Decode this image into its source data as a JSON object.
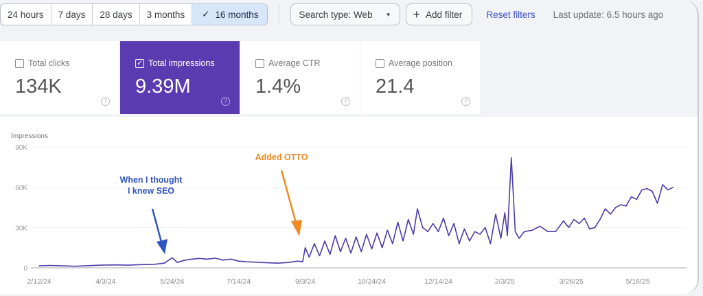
{
  "toolbar": {
    "ranges": [
      {
        "label": "24 hours",
        "selected": false
      },
      {
        "label": "7 days",
        "selected": false
      },
      {
        "label": "28 days",
        "selected": false
      },
      {
        "label": "3 months",
        "selected": false
      },
      {
        "label": "16 months",
        "selected": true
      }
    ],
    "check_glyph": "✓",
    "search_type": "Search type: Web",
    "add_filter": "Add filter",
    "reset_filters": "Reset filters",
    "last_update": "Last update: 6.5 hours ago"
  },
  "metrics": [
    {
      "label": "Total clicks",
      "value": "134K",
      "checked": false
    },
    {
      "label": "Total impressions",
      "value": "9.39M",
      "checked": true
    },
    {
      "label": "Average CTR",
      "value": "1.4%",
      "checked": false
    },
    {
      "label": "Average position",
      "value": "21.4",
      "checked": false
    }
  ],
  "colors": {
    "accent": "#5b3bb0",
    "line": "#4b3aa8",
    "annotation_blue": "#2f55c0",
    "annotation_orange": "#f08a24",
    "link": "#3b4fc4"
  },
  "chart_data": {
    "type": "line",
    "ylabel": "Impressions",
    "ylim": [
      0,
      90000
    ],
    "yticks": [
      {
        "value": 0,
        "label": "0"
      },
      {
        "value": 30000,
        "label": "30K"
      },
      {
        "value": 60000,
        "label": "60K"
      },
      {
        "value": 90000,
        "label": "90K"
      }
    ],
    "xticks": [
      {
        "date": "2024-02-12",
        "label": "2/12/24"
      },
      {
        "date": "2024-04-03",
        "label": "4/3/24"
      },
      {
        "date": "2024-05-24",
        "label": "5/24/24"
      },
      {
        "date": "2024-07-14",
        "label": "7/14/24"
      },
      {
        "date": "2024-09-03",
        "label": "9/3/24"
      },
      {
        "date": "2024-10-24",
        "label": "10/24/24"
      },
      {
        "date": "2024-12-14",
        "label": "12/14/24"
      },
      {
        "date": "2025-02-03",
        "label": "2/3/25"
      },
      {
        "date": "2025-03-26",
        "label": "3/26/25"
      },
      {
        "date": "2025-05-16",
        "label": "5/16/25"
      }
    ],
    "grid": true,
    "annotations": [
      {
        "text": [
          "When I thought",
          "I knew SEO"
        ],
        "date": "2024-05-22",
        "color": "blue"
      },
      {
        "text": [
          "Added OTTO"
        ],
        "date": "2024-09-01",
        "color": "orange"
      }
    ],
    "series": [
      {
        "points": [
          [
            "2024-02-12",
            1500
          ],
          [
            "2024-02-20",
            1800
          ],
          [
            "2024-03-01",
            1500
          ],
          [
            "2024-03-10",
            1200
          ],
          [
            "2024-03-20",
            1600
          ],
          [
            "2024-03-30",
            2000
          ],
          [
            "2024-04-10",
            2200
          ],
          [
            "2024-04-20",
            2000
          ],
          [
            "2024-04-30",
            2400
          ],
          [
            "2024-05-10",
            2600
          ],
          [
            "2024-05-18",
            3500
          ],
          [
            "2024-05-24",
            7500
          ],
          [
            "2024-05-28",
            4000
          ],
          [
            "2024-06-02",
            5500
          ],
          [
            "2024-06-08",
            6500
          ],
          [
            "2024-06-14",
            7000
          ],
          [
            "2024-06-20",
            6500
          ],
          [
            "2024-06-26",
            7200
          ],
          [
            "2024-07-02",
            5800
          ],
          [
            "2024-07-08",
            6500
          ],
          [
            "2024-07-14",
            5000
          ],
          [
            "2024-07-20",
            4500
          ],
          [
            "2024-07-28",
            4200
          ],
          [
            "2024-08-05",
            3800
          ],
          [
            "2024-08-13",
            3500
          ],
          [
            "2024-08-21",
            4000
          ],
          [
            "2024-08-28",
            5000
          ],
          [
            "2024-09-01",
            4500
          ],
          [
            "2024-09-03",
            15000
          ],
          [
            "2024-09-06",
            8000
          ],
          [
            "2024-09-10",
            18000
          ],
          [
            "2024-09-14",
            9000
          ],
          [
            "2024-09-18",
            20000
          ],
          [
            "2024-09-22",
            10000
          ],
          [
            "2024-09-26",
            24000
          ],
          [
            "2024-09-30",
            12000
          ],
          [
            "2024-10-04",
            22000
          ],
          [
            "2024-10-08",
            11000
          ],
          [
            "2024-10-12",
            23000
          ],
          [
            "2024-10-16",
            12000
          ],
          [
            "2024-10-20",
            25000
          ],
          [
            "2024-10-24",
            14000
          ],
          [
            "2024-10-28",
            26000
          ],
          [
            "2024-11-01",
            15000
          ],
          [
            "2024-11-05",
            28000
          ],
          [
            "2024-11-09",
            18000
          ],
          [
            "2024-11-13",
            34000
          ],
          [
            "2024-11-17",
            20000
          ],
          [
            "2024-11-21",
            36000
          ],
          [
            "2024-11-25",
            25000
          ],
          [
            "2024-11-28",
            44000
          ],
          [
            "2024-12-02",
            30000
          ],
          [
            "2024-12-06",
            27000
          ],
          [
            "2024-12-10",
            33000
          ],
          [
            "2024-12-14",
            27000
          ],
          [
            "2024-12-18",
            37000
          ],
          [
            "2024-12-22",
            24000
          ],
          [
            "2024-12-26",
            33000
          ],
          [
            "2024-12-30",
            18000
          ],
          [
            "2025-01-03",
            29000
          ],
          [
            "2025-01-07",
            20000
          ],
          [
            "2025-01-11",
            27000
          ],
          [
            "2025-01-15",
            25000
          ],
          [
            "2025-01-19",
            30000
          ],
          [
            "2025-01-23",
            18000
          ],
          [
            "2025-01-27",
            40000
          ],
          [
            "2025-01-31",
            22000
          ],
          [
            "2025-02-03",
            41000
          ],
          [
            "2025-02-05",
            24000
          ],
          [
            "2025-02-08",
            82000
          ],
          [
            "2025-02-11",
            27000
          ],
          [
            "2025-02-14",
            22000
          ],
          [
            "2025-02-18",
            27000
          ],
          [
            "2025-02-24",
            28000
          ],
          [
            "2025-03-02",
            31000
          ],
          [
            "2025-03-08",
            27000
          ],
          [
            "2025-03-14",
            27000
          ],
          [
            "2025-03-20",
            35000
          ],
          [
            "2025-03-24",
            30000
          ],
          [
            "2025-03-28",
            36000
          ],
          [
            "2025-04-01",
            33000
          ],
          [
            "2025-04-05",
            37000
          ],
          [
            "2025-04-09",
            29000
          ],
          [
            "2025-04-13",
            30000
          ],
          [
            "2025-04-17",
            36000
          ],
          [
            "2025-04-21",
            44000
          ],
          [
            "2025-04-25",
            40000
          ],
          [
            "2025-04-29",
            45000
          ],
          [
            "2025-05-03",
            47000
          ],
          [
            "2025-05-07",
            46000
          ],
          [
            "2025-05-11",
            53000
          ],
          [
            "2025-05-15",
            51000
          ],
          [
            "2025-05-19",
            58000
          ],
          [
            "2025-05-23",
            59000
          ],
          [
            "2025-05-27",
            57000
          ],
          [
            "2025-05-31",
            48000
          ],
          [
            "2025-06-04",
            62000
          ],
          [
            "2025-06-08",
            58000
          ],
          [
            "2025-06-12",
            60000
          ]
        ]
      }
    ]
  }
}
